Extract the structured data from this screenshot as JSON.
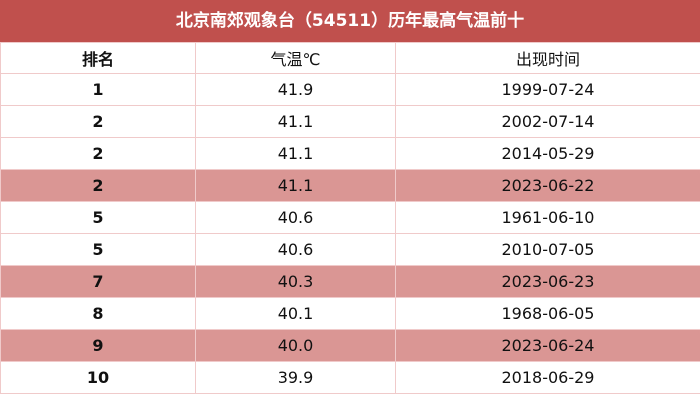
{
  "table": {
    "title": "北京南郊观象台（54511）历年最高气温前十",
    "header": [
      "排名",
      "气温℃",
      "出现时间"
    ],
    "rows": [
      [
        "1",
        "41.9",
        "1999-07-24"
      ],
      [
        "2",
        "41.1",
        "2002-07-14"
      ],
      [
        "2",
        "41.1",
        "2014-05-29"
      ],
      [
        "2",
        "41.1",
        "2023-06-22"
      ],
      [
        "5",
        "40.6",
        "1961-06-10"
      ],
      [
        "5",
        "40.6",
        "2010-07-05"
      ],
      [
        "7",
        "40.3",
        "2023-06-23"
      ],
      [
        "8",
        "40.1",
        "1968-06-05"
      ],
      [
        "9",
        "40.0",
        "2023-06-24"
      ],
      [
        "10",
        "39.9",
        "2018-06-29"
      ]
    ],
    "highlight_rows": [
      3,
      6,
      8
    ],
    "title_color": "#c0504d",
    "highlight_color": "#da9694"
  }
}
